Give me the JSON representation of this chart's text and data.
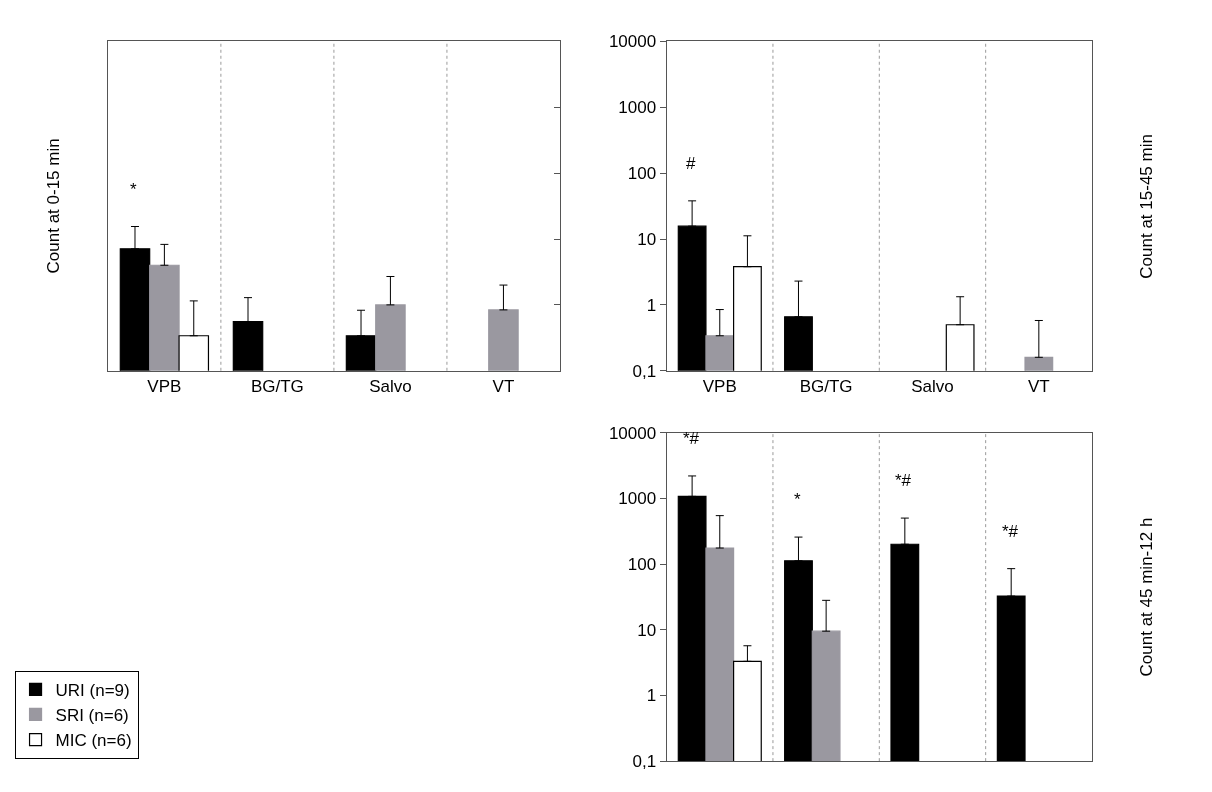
{
  "chart_data": [
    {
      "type": "bar",
      "ylabel": "Count at 0-15 min",
      "categories": [
        "VPB",
        "BG/TG",
        "Salvo",
        "VT"
      ],
      "log": true,
      "ylim": [
        0.1,
        10000
      ],
      "yticks": [
        {
          "value": 1,
          "label": null
        },
        {
          "value": 10,
          "label": null
        },
        {
          "value": 100,
          "label": null
        },
        {
          "value": 1000,
          "label": null
        }
      ],
      "tick_labels": "x",
      "grid": "x",
      "legend": "bottom left",
      "series": [
        {
          "name": "URI (n=9)",
          "color": "#000000",
          "values": [
            7.1,
            0.56,
            0.34,
            null
          ],
          "errors": [
            [
              7.1,
              15.5
            ],
            [
              0.56,
              1.29
            ],
            [
              0.34,
              0.83
            ],
            null
          ]
        },
        {
          "name": "SRI (n=6)",
          "color": "#9a98a0",
          "values": [
            4.0,
            null,
            1.0,
            0.84
          ],
          "errors": [
            [
              4.0,
              8.3
            ],
            null,
            [
              1.0,
              2.7
            ],
            [
              0.84,
              2.0
            ]
          ]
        },
        {
          "name": "MIC (n=6)",
          "color": "#ffffff",
          "values": [
            0.34,
            null,
            null,
            null
          ],
          "errors": [
            [
              0.34,
              1.15
            ],
            null,
            null,
            null
          ]
        }
      ],
      "annotations": [
        "*"
      ]
    },
    {
      "type": "bar",
      "ylabel": "Count at 15-45 min",
      "categories": [
        "VPB",
        "BG/TG",
        "Salvo",
        "VT"
      ],
      "log": true,
      "ylim": [
        0.1,
        10000
      ],
      "yticks": [
        {
          "value": 0.1,
          "label": "0,1"
        },
        1,
        10,
        100,
        1000,
        10000
      ],
      "grid": "x",
      "legend": false,
      "series": [
        {
          "color": "#000000",
          "values": [
            15.7,
            0.66,
            null,
            null
          ],
          "errors": [
            [
              15.7,
              38
            ],
            [
              0.66,
              2.3
            ],
            null,
            null
          ]
        },
        {
          "color": "#9a98a0",
          "values": [
            0.34,
            null,
            null,
            0.16
          ],
          "errors": [
            [
              0.34,
              0.85
            ],
            null,
            null,
            [
              0.16,
              0.58
            ]
          ]
        },
        {
          "color": "#ffffff",
          "values": [
            3.8,
            null,
            0.5,
            null
          ],
          "errors": [
            [
              3.8,
              11.2
            ],
            null,
            [
              0.5,
              1.33
            ],
            null
          ]
        }
      ],
      "annotations": [
        "#"
      ]
    },
    {
      "type": "bar",
      "ylabel": "Count at 45 min-12 h",
      "categories": [
        null,
        null,
        null,
        null
      ],
      "log": true,
      "ylim": [
        0.1,
        10000
      ],
      "yticks": [
        {
          "value": 0.1,
          "label": "0,1"
        },
        1,
        10,
        100,
        1000,
        10000
      ],
      "tick_labels": "y",
      "grid": "x",
      "legend": false,
      "series": [
        {
          "color": "#000000",
          "values": [
            1070,
            112,
            200,
            32.5
          ],
          "errors": [
            [
              1070,
              2190
            ],
            [
              112,
              257
            ],
            [
              200,
              500
            ],
            [
              32.5,
              85
            ]
          ]
        },
        {
          "color": "#9a98a0",
          "values": [
            175,
            9.5,
            null,
            null
          ],
          "errors": [
            [
              175,
              545
            ],
            [
              9.5,
              28
            ],
            null,
            null
          ]
        },
        {
          "color": "#ffffff",
          "values": [
            3.3,
            null,
            null,
            null
          ],
          "errors": [
            [
              3.3,
              5.7
            ],
            null,
            null,
            null
          ]
        }
      ],
      "annotations": [
        "*#",
        "*",
        "*#",
        "*#"
      ]
    }
  ]
}
